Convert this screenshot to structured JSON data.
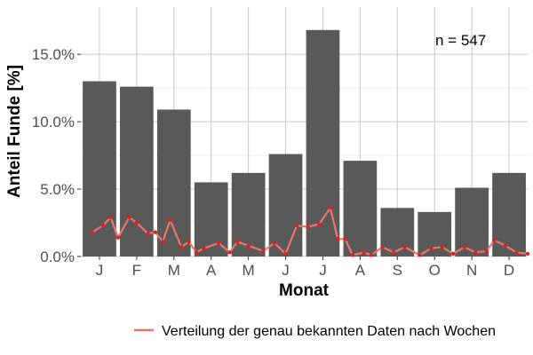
{
  "chart_data": {
    "type": "bar",
    "categories": [
      "J",
      "F",
      "M",
      "A",
      "M",
      "J",
      "J",
      "A",
      "S",
      "O",
      "N",
      "D"
    ],
    "values": [
      13.0,
      12.6,
      10.9,
      5.5,
      6.2,
      7.6,
      16.8,
      7.1,
      3.6,
      3.3,
      5.1,
      6.2
    ],
    "xlabel": "Monat",
    "ylabel": "Anteil Funde [%]",
    "ylim": [
      0,
      18.5
    ],
    "yticks": [
      0,
      5,
      10,
      15
    ],
    "ytick_labels": [
      "0.0%",
      "5.0%",
      "10.0%",
      "15.0%"
    ],
    "grid": true,
    "legend_position": "bottom",
    "annotation": "n = 547",
    "bar_color": "#595959",
    "line_series": {
      "name": "Verteilung der genau bekannten Daten nach Wochen",
      "color": "#e8766d",
      "point_color": "#e02020",
      "x": [
        0.8,
        1.1,
        1.3,
        1.5,
        1.8,
        2.0,
        2.3,
        2.5,
        2.7,
        2.9,
        3.2,
        3.4,
        3.6,
        3.8,
        4.2,
        4.5,
        4.7,
        5.0,
        5.4,
        5.7,
        6.0,
        6.3,
        6.6,
        6.9,
        7.2,
        7.4,
        7.6,
        7.8,
        8.1,
        8.3,
        8.6,
        8.9,
        9.2,
        9.6,
        9.9,
        10.2,
        10.5,
        10.8,
        11.1,
        11.4,
        11.6,
        11.9,
        12.2,
        12.5
      ],
      "y": [
        1.8,
        2.3,
        2.9,
        1.4,
        2.9,
        2.5,
        1.7,
        1.8,
        1.1,
        2.7,
        0.7,
        1.1,
        0.3,
        0.6,
        1.0,
        0.3,
        1.1,
        0.8,
        0.4,
        1.0,
        0.2,
        2.3,
        2.2,
        2.4,
        3.6,
        1.3,
        1.3,
        0.1,
        0.3,
        0.1,
        0.7,
        0.3,
        0.7,
        0.1,
        0.6,
        0.7,
        0.2,
        0.7,
        0.3,
        0.4,
        1.2,
        0.8,
        0.3,
        0.2
      ]
    }
  }
}
